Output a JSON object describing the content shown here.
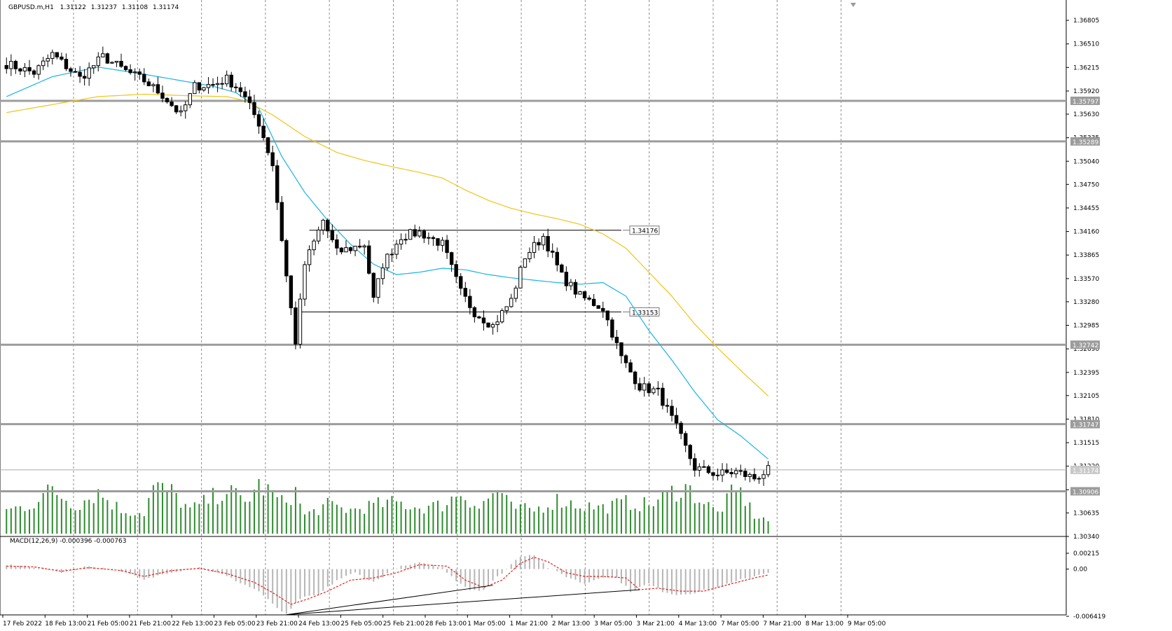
{
  "header": {
    "symbol": "GBPUSD.m,H1",
    "open": "1.31122",
    "high": "1.31237",
    "low": "1.31108",
    "close": "1.31174"
  },
  "colors": {
    "background": "#ffffff",
    "candle": "#000000",
    "ma_fast": "#1ab3e6",
    "ma_slow": "#f0c419",
    "volume": "#2e8b2e",
    "macd_hist": "#b5b5b5",
    "macd_signal": "#e0201b",
    "level_line": "#9c9c9c",
    "grid": "#8c8c8c"
  },
  "chart_data": [
    {
      "type": "candlestick",
      "symbol": "GBPUSD.m",
      "timeframe": "H1",
      "price_axis_ticks": [
        "1.36805",
        "1.36510",
        "1.36215",
        "1.35920",
        "1.35630",
        "1.35335",
        "1.35040",
        "1.34750",
        "1.34455",
        "1.34160",
        "1.33865",
        "1.33570",
        "1.33280",
        "1.32985",
        "1.32690",
        "1.32395",
        "1.32105",
        "1.31810",
        "1.31515",
        "1.31220",
        "1.30925",
        "1.30635",
        "1.30340"
      ],
      "ylim": [
        1.3034,
        1.3706
      ],
      "time_axis_labels": [
        "17 Feb 2022",
        "18 Feb 13:00",
        "21 Feb 05:00",
        "21 Feb 21:00",
        "22 Feb 13:00",
        "23 Feb 05:00",
        "23 Feb 21:00",
        "24 Feb 13:00",
        "25 Feb 05:00",
        "25 Feb 21:00",
        "28 Feb 13:00",
        "1 Mar 05:00",
        "1 Mar 21:00",
        "2 Mar 13:00",
        "3 Mar 05:00",
        "3 Mar 21:00",
        "4 Mar 13:00",
        "7 Mar 05:00",
        "7 Mar 21:00",
        "8 Mar 13:00",
        "9 Mar 05:00"
      ],
      "horizontal_levels": [
        "1.35797",
        "1.35289",
        "1.32742",
        "1.31747",
        "1.30906"
      ],
      "current_price": "1.31174",
      "range_lines": [
        {
          "price": "1.34176",
          "from_bar": 66,
          "to_bar": 134
        },
        {
          "price": "1.33153",
          "from_bar": 64,
          "to_bar": 134
        }
      ],
      "close_path_anchors": [
        [
          0,
          1.3626
        ],
        [
          6,
          1.3615
        ],
        [
          10,
          1.3638
        ],
        [
          16,
          1.3608
        ],
        [
          21,
          1.3635
        ],
        [
          26,
          1.3617
        ],
        [
          30,
          1.3605
        ],
        [
          34,
          1.3587
        ],
        [
          38,
          1.3562
        ],
        [
          41,
          1.3598
        ],
        [
          45,
          1.36
        ],
        [
          48,
          1.3607
        ],
        [
          51,
          1.3593
        ],
        [
          55,
          1.3552
        ],
        [
          58,
          1.35
        ],
        [
          61,
          1.336
        ],
        [
          63,
          1.3278
        ],
        [
          65,
          1.3375
        ],
        [
          69,
          1.343
        ],
        [
          72,
          1.339
        ],
        [
          75,
          1.3395
        ],
        [
          78,
          1.34
        ],
        [
          80,
          1.333
        ],
        [
          82,
          1.3375
        ],
        [
          86,
          1.341
        ],
        [
          90,
          1.3415
        ],
        [
          95,
          1.34
        ],
        [
          99,
          1.334
        ],
        [
          102,
          1.3315
        ],
        [
          106,
          1.3298
        ],
        [
          110,
          1.333
        ],
        [
          113,
          1.3385
        ],
        [
          117,
          1.341
        ],
        [
          121,
          1.336
        ],
        [
          125,
          1.3335
        ],
        [
          130,
          1.332
        ],
        [
          134,
          1.3258
        ],
        [
          138,
          1.3222
        ],
        [
          142,
          1.3215
        ],
        [
          146,
          1.317
        ],
        [
          150,
          1.312
        ],
        [
          155,
          1.3112
        ],
        [
          159,
          1.3115
        ],
        [
          163,
          1.3107
        ],
        [
          166,
          1.3117
        ]
      ]
    },
    {
      "type": "line",
      "name": "moving averages",
      "series": [
        {
          "key": "ma_fast",
          "anchors": [
            [
              0,
              1.3585
            ],
            [
              10,
              1.361
            ],
            [
              20,
              1.3622
            ],
            [
              30,
              1.3613
            ],
            [
              45,
              1.3598
            ],
            [
              50,
              1.359
            ],
            [
              55,
              1.357
            ],
            [
              60,
              1.351
            ],
            [
              65,
              1.3465
            ],
            [
              70,
              1.343
            ],
            [
              75,
              1.34
            ],
            [
              80,
              1.3375
            ],
            [
              85,
              1.3362
            ],
            [
              90,
              1.3365
            ],
            [
              95,
              1.337
            ],
            [
              100,
              1.3368
            ],
            [
              105,
              1.3362
            ],
            [
              110,
              1.3358
            ],
            [
              115,
              1.3355
            ],
            [
              120,
              1.3352
            ],
            [
              125,
              1.335
            ],
            [
              130,
              1.3352
            ],
            [
              135,
              1.3335
            ],
            [
              140,
              1.3292
            ],
            [
              145,
              1.3255
            ],
            [
              150,
              1.3215
            ],
            [
              155,
              1.318
            ],
            [
              160,
              1.316
            ],
            [
              166,
              1.3131
            ]
          ]
        },
        {
          "key": "ma_slow",
          "anchors": [
            [
              0,
              1.3565
            ],
            [
              10,
              1.3575
            ],
            [
              20,
              1.3585
            ],
            [
              30,
              1.3588
            ],
            [
              40,
              1.3586
            ],
            [
              48,
              1.3585
            ],
            [
              52,
              1.358
            ],
            [
              58,
              1.3562
            ],
            [
              65,
              1.3535
            ],
            [
              72,
              1.3515
            ],
            [
              78,
              1.3505
            ],
            [
              85,
              1.3496
            ],
            [
              90,
              1.349
            ],
            [
              95,
              1.3483
            ],
            [
              100,
              1.3468
            ],
            [
              105,
              1.3455
            ],
            [
              110,
              1.3445
            ],
            [
              115,
              1.3438
            ],
            [
              120,
              1.3432
            ],
            [
              125,
              1.3425
            ],
            [
              130,
              1.3413
            ],
            [
              135,
              1.3395
            ],
            [
              140,
              1.3365
            ],
            [
              145,
              1.3335
            ],
            [
              150,
              1.33
            ],
            [
              155,
              1.327
            ],
            [
              160,
              1.3242
            ],
            [
              166,
              1.321
            ]
          ]
        }
      ]
    },
    {
      "type": "bar",
      "name": "tick volume (relative)",
      "anchors": [
        [
          0,
          0.45
        ],
        [
          5,
          0.55
        ],
        [
          10,
          0.85
        ],
        [
          15,
          0.55
        ],
        [
          20,
          0.8
        ],
        [
          25,
          0.45
        ],
        [
          30,
          0.4
        ],
        [
          32,
          0.9
        ],
        [
          36,
          0.8
        ],
        [
          40,
          0.45
        ],
        [
          45,
          0.7
        ],
        [
          48,
          0.85
        ],
        [
          52,
          0.6
        ],
        [
          55,
          0.95
        ],
        [
          58,
          0.75
        ],
        [
          60,
          0.6
        ],
        [
          63,
          0.8
        ],
        [
          65,
          0.35
        ],
        [
          70,
          0.55
        ],
        [
          75,
          0.45
        ],
        [
          80,
          0.55
        ],
        [
          85,
          0.6
        ],
        [
          90,
          0.5
        ],
        [
          95,
          0.55
        ],
        [
          99,
          0.8
        ],
        [
          103,
          0.5
        ],
        [
          107,
          0.85
        ],
        [
          110,
          0.5
        ],
        [
          115,
          0.45
        ],
        [
          120,
          0.65
        ],
        [
          125,
          0.55
        ],
        [
          130,
          0.5
        ],
        [
          135,
          0.6
        ],
        [
          140,
          0.55
        ],
        [
          145,
          0.8
        ],
        [
          148,
          0.9
        ],
        [
          152,
          0.6
        ],
        [
          155,
          0.4
        ],
        [
          158,
          0.75
        ],
        [
          160,
          0.8
        ],
        [
          163,
          0.35
        ],
        [
          166,
          0.25
        ]
      ]
    },
    {
      "type": "bar",
      "name": "MACD",
      "title": "MACD(12,26,9) -0.000396 -0.000763",
      "axis_ticks": [
        "0.00215",
        "0.00",
        "-0.006419"
      ],
      "ylim": [
        -0.006419,
        0.00215
      ],
      "histogram_anchors": [
        [
          0,
          0.0005
        ],
        [
          5,
          0.0004
        ],
        [
          12,
          -0.0004
        ],
        [
          18,
          0.0004
        ],
        [
          25,
          -0.0002
        ],
        [
          30,
          -0.0015
        ],
        [
          35,
          -0.0005
        ],
        [
          42,
          0.0003
        ],
        [
          45,
          -0.0003
        ],
        [
          48,
          -0.001
        ],
        [
          55,
          -0.003
        ],
        [
          58,
          -0.0048
        ],
        [
          61,
          -0.0062
        ],
        [
          64,
          -0.004
        ],
        [
          68,
          -0.0035
        ],
        [
          72,
          -0.0015
        ],
        [
          76,
          -0.0005
        ],
        [
          80,
          -0.0018
        ],
        [
          85,
          0.0002
        ],
        [
          90,
          0.0008
        ],
        [
          95,
          0.0002
        ],
        [
          98,
          -0.0015
        ],
        [
          101,
          -0.0028
        ],
        [
          104,
          -0.0028
        ],
        [
          108,
          -0.0005
        ],
        [
          112,
          0.0018
        ],
        [
          115,
          0.002
        ],
        [
          118,
          0.0002
        ],
        [
          122,
          -0.001
        ],
        [
          126,
          -0.002
        ],
        [
          130,
          -0.001
        ],
        [
          133,
          -0.0012
        ],
        [
          136,
          -0.003
        ],
        [
          140,
          -0.002
        ],
        [
          143,
          -0.003
        ],
        [
          146,
          -0.0035
        ],
        [
          150,
          -0.0032
        ],
        [
          155,
          -0.0025
        ],
        [
          160,
          -0.0015
        ],
        [
          166,
          -0.0004
        ]
      ],
      "signal_anchors": [
        [
          0,
          0.0004
        ],
        [
          6,
          0.0003
        ],
        [
          12,
          -0.0003
        ],
        [
          18,
          0.0002
        ],
        [
          25,
          -0.0002
        ],
        [
          30,
          -0.001
        ],
        [
          36,
          -0.0002
        ],
        [
          42,
          0.0001
        ],
        [
          48,
          -0.0006
        ],
        [
          54,
          -0.0018
        ],
        [
          58,
          -0.0032
        ],
        [
          62,
          -0.0048
        ],
        [
          66,
          -0.004
        ],
        [
          70,
          -0.003
        ],
        [
          75,
          -0.0015
        ],
        [
          80,
          -0.0012
        ],
        [
          85,
          -0.0005
        ],
        [
          90,
          0.0006
        ],
        [
          96,
          0.0004
        ],
        [
          100,
          -0.0015
        ],
        [
          104,
          -0.0025
        ],
        [
          108,
          -0.0015
        ],
        [
          112,
          0.0008
        ],
        [
          115,
          0.0016
        ],
        [
          118,
          0.001
        ],
        [
          122,
          -0.0005
        ],
        [
          126,
          -0.001
        ],
        [
          130,
          -0.001
        ],
        [
          135,
          -0.0012
        ],
        [
          138,
          -0.0028
        ],
        [
          142,
          -0.0026
        ],
        [
          147,
          -0.003
        ],
        [
          152,
          -0.003
        ],
        [
          158,
          -0.002
        ],
        [
          163,
          -0.0012
        ],
        [
          166,
          -0.0008
        ]
      ],
      "divergence_lines": [
        {
          "from": [
            61,
            -0.0062
          ],
          "to": [
            106,
            -0.0022
          ]
        },
        {
          "from": [
            61,
            -0.0062
          ],
          "to": [
            138,
            -0.0028
          ]
        }
      ]
    }
  ]
}
